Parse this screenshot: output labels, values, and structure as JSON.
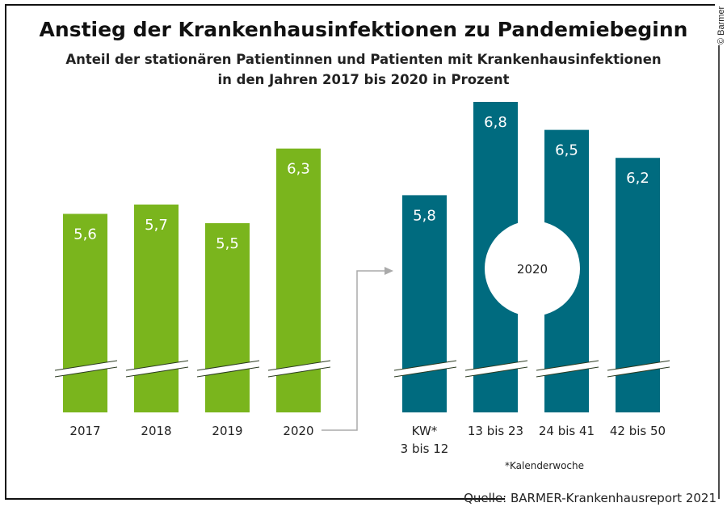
{
  "chart_data": {
    "type": "bar",
    "title": "Anstieg der Krankenhausinfektionen zu Pandemiebeginn",
    "subtitle_lines": [
      "Anteil der stationären Patientinnen und Patienten mit Krankenhausinfektionen",
      "in den Jahren 2017 bis 2020 in Prozent"
    ],
    "axis_break": true,
    "groups": [
      {
        "color": "#7ab51d",
        "categories": [
          [
            "2017"
          ],
          [
            "2018"
          ],
          [
            "2019"
          ],
          [
            "2020"
          ]
        ],
        "values": [
          5.6,
          5.7,
          5.5,
          6.3
        ],
        "value_labels": [
          "5,6",
          "5,7",
          "5,5",
          "6,3"
        ]
      },
      {
        "color": "#006b7f",
        "group_label": "2020",
        "categories": [
          [
            "KW*",
            "3 bis 12"
          ],
          [
            "13 bis 23"
          ],
          [
            "24 bis 41"
          ],
          [
            "42 bis 50"
          ]
        ],
        "values": [
          5.8,
          6.8,
          6.5,
          6.2
        ],
        "value_labels": [
          "5,8",
          "6,8",
          "6,5",
          "6,2"
        ]
      }
    ],
    "footnote": "*Kalenderwoche",
    "source": "Quelle: BARMER-Krankenhausreport 2021",
    "copyright": "© Barmer"
  }
}
